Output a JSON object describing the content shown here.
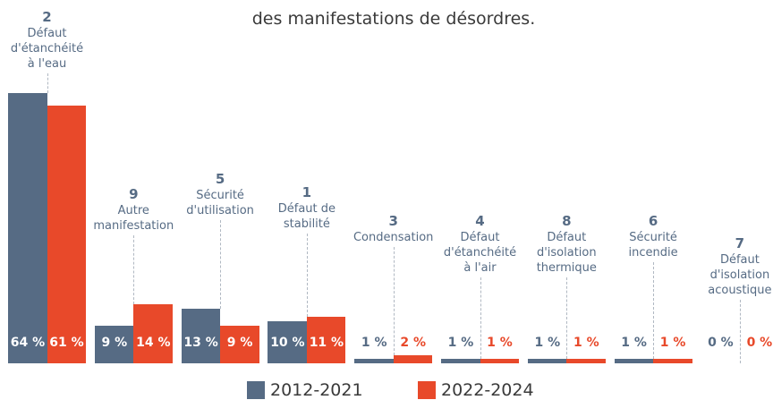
{
  "chart_data": {
    "type": "bar",
    "title": "des manifestations de désordres.",
    "category_numbers": [
      "2",
      "9",
      "5",
      "1",
      "3",
      "4",
      "8",
      "6",
      "7"
    ],
    "categories": [
      "Défaut\nd'étanchéité\nà l'eau",
      "Autre\nmanifestation",
      "Sécurité\nd'utilisation",
      "Défaut de\nstabilité",
      "Condensation",
      "Défaut\nd'étanchéité\nà l'air",
      "Défaut\nd'isolation\nthermique",
      "Sécurité\nincendie",
      "Défaut\nd'isolation\nacoustique"
    ],
    "series": [
      {
        "name": "2012-2021",
        "color": "#566b84",
        "values": [
          64,
          9,
          13,
          10,
          1,
          1,
          1,
          1,
          0
        ],
        "value_labels": [
          "64 %",
          "9 %",
          "13 %",
          "10 %",
          "1 %",
          "1 %",
          "1 %",
          "1 %",
          "0 %"
        ]
      },
      {
        "name": "2022-2024",
        "color": "#e8492a",
        "values": [
          61,
          14,
          9,
          11,
          2,
          1,
          1,
          1,
          0
        ],
        "value_labels": [
          "61 %",
          "14 %",
          "9 %",
          "11 %",
          "2 %",
          "1 %",
          "1 %",
          "1 %",
          "0 %"
        ]
      }
    ]
  }
}
